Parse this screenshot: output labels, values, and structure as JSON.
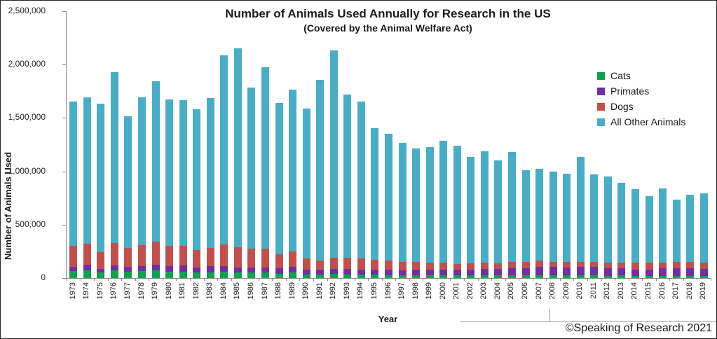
{
  "credit": "©Speaking of Research 2021",
  "chart_data": {
    "type": "bar",
    "stacked": true,
    "title": "Number of Animals Used Annually for Research in the US",
    "subtitle": "(Covered by the Animal Welfare Act)",
    "xlabel": "Year",
    "ylabel": "Number of Animals Used",
    "ylim": [
      0,
      2500000
    ],
    "ytick_interval": 500000,
    "ytick_labels": [
      "0",
      "500,000",
      "1,000,000",
      "1,500,000",
      "2,000,000",
      "2,500,000"
    ],
    "grid": false,
    "legend_position": "right",
    "categories": [
      "1973",
      "1974",
      "1975",
      "1976",
      "1977",
      "1978",
      "1979",
      "1980",
      "1981",
      "1982",
      "1983",
      "1984",
      "1985",
      "1986",
      "1987",
      "1988",
      "1989",
      "1990",
      "1991",
      "1992",
      "1993",
      "1994",
      "1995",
      "1996",
      "1997",
      "1998",
      "1999",
      "2000",
      "2001",
      "2002",
      "2003",
      "2004",
      "2005",
      "2006",
      "2007",
      "2008",
      "2009",
      "2010",
      "2011",
      "2012",
      "2013",
      "2014",
      "2015",
      "2016",
      "2017",
      "2018",
      "2019"
    ],
    "series": [
      {
        "name": "Cats",
        "color": "#11A14D",
        "values": [
          66000,
          74000,
          51000,
          69000,
          60000,
          65000,
          69000,
          58000,
          59000,
          52000,
          55000,
          57000,
          51000,
          54000,
          50000,
          42000,
          51000,
          34000,
          35000,
          38000,
          33000,
          32000,
          30000,
          27000,
          26000,
          26000,
          28000,
          26000,
          25000,
          26000,
          28000,
          28000,
          27000,
          28000,
          27000,
          26000,
          25000,
          26000,
          24000,
          22000,
          24000,
          21000,
          20000,
          19000,
          19000,
          19000,
          18000
        ]
      },
      {
        "name": "Primates",
        "color": "#7030A0",
        "values": [
          42000,
          51000,
          36000,
          48000,
          44000,
          49000,
          59000,
          55000,
          56000,
          48000,
          54000,
          55000,
          48000,
          44000,
          50000,
          50000,
          52000,
          47000,
          43000,
          45000,
          50000,
          48000,
          50000,
          52000,
          49000,
          51000,
          53000,
          55000,
          52000,
          55000,
          60000,
          60000,
          68000,
          66000,
          77000,
          78000,
          74000,
          78000,
          80000,
          73000,
          71000,
          57000,
          62000,
          71000,
          76000,
          71000,
          68000
        ]
      },
      {
        "name": "Dogs",
        "color": "#C0504D",
        "values": [
          195000,
          199000,
          154000,
          211000,
          176000,
          197000,
          211000,
          188000,
          189000,
          161000,
          174000,
          202000,
          188000,
          177000,
          176000,
          129000,
          147000,
          102000,
          88000,
          110000,
          107000,
          101000,
          89000,
          82000,
          73000,
          77000,
          63000,
          64000,
          55000,
          58000,
          56000,
          51000,
          53000,
          54000,
          57000,
          50000,
          49000,
          50000,
          50000,
          49000,
          49000,
          66000,
          61000,
          53000,
          53000,
          61000,
          58000
        ]
      },
      {
        "name": "All Other Animals",
        "color": "#4BACC6",
        "values": [
          1350000,
          1368000,
          1390000,
          1600000,
          1235000,
          1384000,
          1504000,
          1370000,
          1360000,
          1322000,
          1404000,
          1772000,
          1866000,
          1511000,
          1700000,
          1419000,
          1516000,
          1406000,
          1688000,
          1941000,
          1527000,
          1470000,
          1233000,
          1192000,
          1120000,
          1060000,
          1083000,
          1141000,
          1108000,
          999000,
          1046000,
          963000,
          1030000,
          865000,
          866000,
          844000,
          828000,
          981000,
          816000,
          806000,
          746000,
          690000,
          625000,
          700000,
          585000,
          629000,
          651000
        ]
      }
    ]
  }
}
